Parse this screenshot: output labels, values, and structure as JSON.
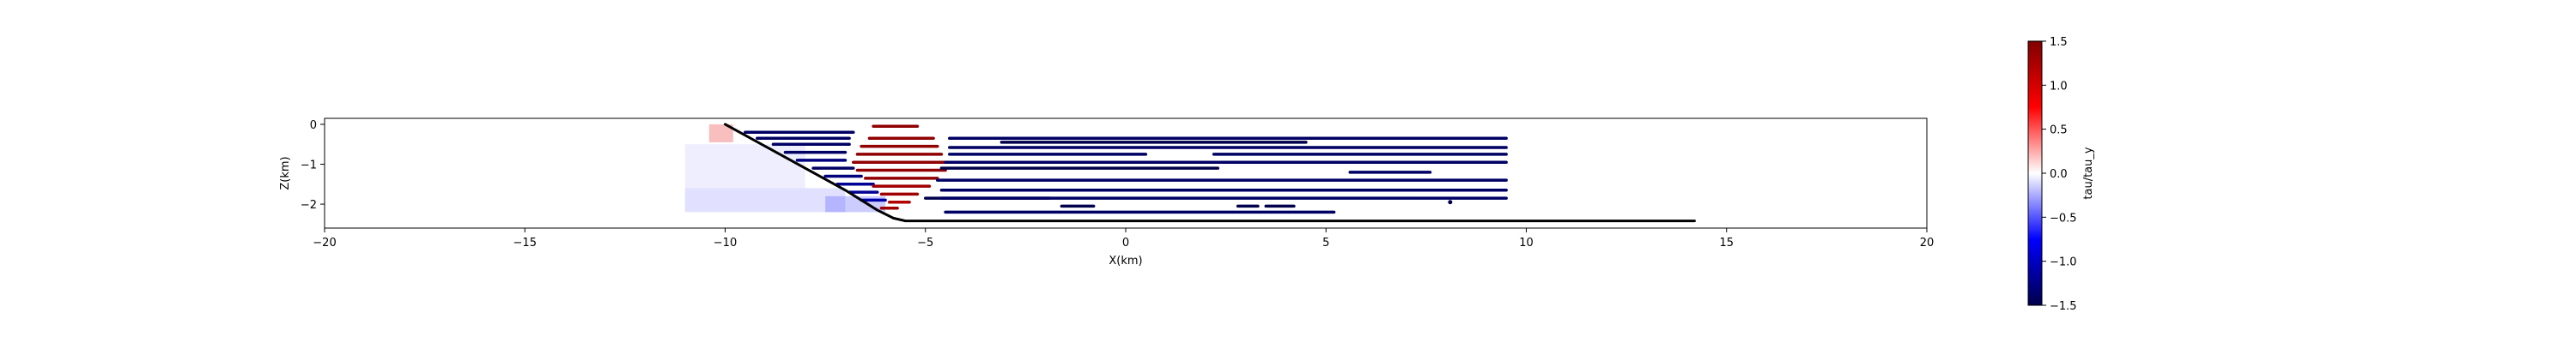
{
  "chart_data": {
    "type": "heatmap",
    "xlabel": "X(km)",
    "ylabel": "Z(km)",
    "xlim": [
      -20,
      20
    ],
    "ylim": [
      -2.6,
      0.15
    ],
    "x_ticks": [
      -20,
      -15,
      -10,
      -5,
      0,
      5,
      10,
      15,
      20
    ],
    "x_tick_labels": [
      "−20",
      "−15",
      "−10",
      "−5",
      "0",
      "5",
      "10",
      "15",
      "20"
    ],
    "y_ticks": [
      0,
      -1,
      -2
    ],
    "y_tick_labels": [
      "0",
      "−1",
      "−2"
    ],
    "grid": false,
    "colorbar": {
      "label": "tau/tau_y",
      "vmin": -1.5,
      "vmax": 1.5,
      "colormap": "seismic",
      "ticks": [
        1.5,
        1.0,
        0.5,
        0.0,
        -0.5,
        -1.0,
        -1.5
      ],
      "tick_labels": [
        "1.5",
        "1.0",
        "0.5",
        "0.0",
        "−0.5",
        "−1.0",
        "−1.5"
      ]
    },
    "fault_line": {
      "color": "#000000",
      "x": [
        -10.0,
        -9.0,
        -8.0,
        -7.0,
        -6.2,
        -5.8,
        -5.5,
        0.0,
        5.0,
        10.0,
        14.2
      ],
      "y": [
        0.0,
        -0.55,
        -1.1,
        -1.65,
        -2.15,
        -2.35,
        -2.42,
        -2.42,
        -2.42,
        -2.42,
        -2.42
      ]
    },
    "stress_segments": [
      {
        "x": [
          -9.5,
          -6.8
        ],
        "y": -0.2,
        "v": -1.4
      },
      {
        "x": [
          -9.2,
          -6.9
        ],
        "y": -0.35,
        "v": -1.4
      },
      {
        "x": [
          -8.8,
          -6.9
        ],
        "y": -0.5,
        "v": -1.4
      },
      {
        "x": [
          -8.5,
          -7.0
        ],
        "y": -0.7,
        "v": -1.4
      },
      {
        "x": [
          -8.2,
          -7.0
        ],
        "y": -0.9,
        "v": -1.3
      },
      {
        "x": [
          -7.8,
          -6.8
        ],
        "y": -1.1,
        "v": -1.4
      },
      {
        "x": [
          -7.5,
          -6.6
        ],
        "y": -1.3,
        "v": -1.3
      },
      {
        "x": [
          -7.2,
          -6.3
        ],
        "y": -1.5,
        "v": -1.2
      },
      {
        "x": [
          -6.9,
          -6.2
        ],
        "y": -1.7,
        "v": -1.2
      },
      {
        "x": [
          -6.6,
          -6.0
        ],
        "y": -1.9,
        "v": -1.1
      },
      {
        "x": [
          -6.1,
          -5.7
        ],
        "y": -2.1,
        "v": 1.3
      },
      {
        "x": [
          -6.3,
          -5.2
        ],
        "y": -0.05,
        "v": 1.4
      },
      {
        "x": [
          -6.4,
          -4.8
        ],
        "y": -0.35,
        "v": 1.4
      },
      {
        "x": [
          -6.6,
          -4.7
        ],
        "y": -0.55,
        "v": 1.4
      },
      {
        "x": [
          -6.7,
          -4.6
        ],
        "y": -0.75,
        "v": 1.4
      },
      {
        "x": [
          -6.8,
          -4.5
        ],
        "y": -0.95,
        "v": 1.4
      },
      {
        "x": [
          -6.7,
          -4.5
        ],
        "y": -1.15,
        "v": 1.4
      },
      {
        "x": [
          -6.5,
          -4.7
        ],
        "y": -1.35,
        "v": 1.4
      },
      {
        "x": [
          -6.3,
          -4.9
        ],
        "y": -1.55,
        "v": 1.3
      },
      {
        "x": [
          -6.1,
          -5.2
        ],
        "y": -1.75,
        "v": 1.3
      },
      {
        "x": [
          -5.9,
          -5.4
        ],
        "y": -1.95,
        "v": 1.2
      },
      {
        "x": [
          -4.4,
          9.5
        ],
        "y": -0.35,
        "v": -1.4
      },
      {
        "x": [
          -3.1,
          4.5
        ],
        "y": -0.45,
        "v": -1.5
      },
      {
        "x": [
          -4.4,
          9.5
        ],
        "y": -0.58,
        "v": -1.4
      },
      {
        "x": [
          -4.4,
          0.5
        ],
        "y": -0.75,
        "v": -1.4
      },
      {
        "x": [
          2.2,
          9.5
        ],
        "y": -0.75,
        "v": -1.4
      },
      {
        "x": [
          -4.5,
          9.5
        ],
        "y": -0.95,
        "v": -1.4
      },
      {
        "x": [
          -4.6,
          2.3
        ],
        "y": -1.1,
        "v": -1.5
      },
      {
        "x": [
          5.6,
          7.6
        ],
        "y": -1.2,
        "v": -1.4
      },
      {
        "x": [
          -4.7,
          9.5
        ],
        "y": -1.4,
        "v": -1.4
      },
      {
        "x": [
          -4.6,
          9.5
        ],
        "y": -1.65,
        "v": -1.4
      },
      {
        "x": [
          -5.0,
          -1.9
        ],
        "y": -1.85,
        "v": -1.5
      },
      {
        "x": [
          -4.6,
          9.5
        ],
        "y": -1.85,
        "v": -1.4
      },
      {
        "x": [
          -1.6,
          -0.8
        ],
        "y": -2.05,
        "v": -1.5
      },
      {
        "x": [
          2.8,
          3.3
        ],
        "y": -2.05,
        "v": -1.5
      },
      {
        "x": [
          3.5,
          4.2
        ],
        "y": -2.05,
        "v": -1.5
      },
      {
        "x": [
          -4.5,
          5.2
        ],
        "y": -2.2,
        "v": -1.4
      }
    ],
    "stress_points": [
      {
        "x": 8.1,
        "y": -1.95,
        "v": -1.5
      }
    ],
    "stress_field": [
      {
        "x": [
          -10.4,
          -9.8
        ],
        "y": [
          -0.45,
          0.0
        ],
        "v": 0.9
      },
      {
        "x": [
          -11.0,
          -8.0
        ],
        "y": [
          -1.6,
          -0.5
        ],
        "v": -0.2
      },
      {
        "x": [
          -11.0,
          -7.0
        ],
        "y": [
          -2.2,
          -1.6
        ],
        "v": -0.35
      },
      {
        "x": [
          -7.5,
          -6.0
        ],
        "y": [
          -2.2,
          -1.8
        ],
        "v": -0.6
      }
    ]
  }
}
